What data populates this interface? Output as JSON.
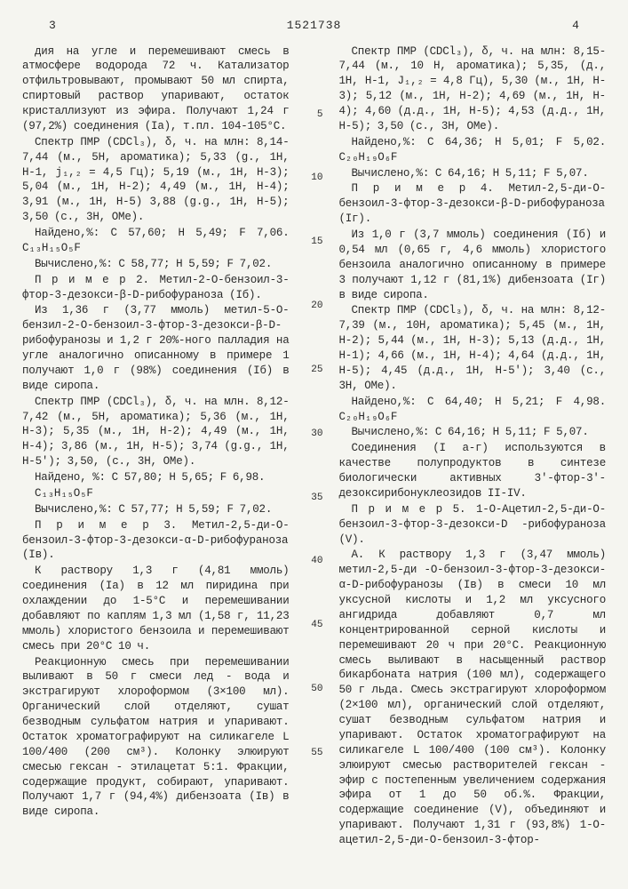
{
  "header": {
    "page_left": "3",
    "doc_number": "1521738",
    "page_right": "4"
  },
  "line_numbers": [
    "5",
    "10",
    "15",
    "20",
    "25",
    "30",
    "35",
    "40",
    "45",
    "50",
    "55"
  ],
  "left_column": [
    "дия на угле и перемешивают смесь в атмосфере водорода 72 ч. Катализатор отфильтровывают, промывают 50 мл спирта, спиртовый раствор упаривают, остаток кристаллизуют из эфира. Получают 1,24 г (97,2%) соединения (Iа), т.пл. 104-105°C.",
    "Спектр ПМР (CDCl₃), δ, ч. на млн: 8,14-7,44 (м., 5H, ароматика); 5,33 (g., 1H, H-1, j₁,₂ = 4,5 Гц); 5,19 (м., 1H, H-3); 5,04 (м., 1H, H-2); 4,49 (м., 1H, H-4); 3,91 (м., 1H, H-5) 3,88 (g.g., 1H, H-5); 3,50 (с., 3H, OMe).",
    "Найдено,%: C 57,60; H 5,49; F 7,06. C₁₃H₁₅O₅F",
    "Вычислено,%: C 58,77; H 5,59; F 7,02.",
    "П р и м е р  2. Метил-2-O-бензоил-3-фтор-3-дезокси-β-D-рибофураноза (Iб).",
    "Из 1,36 г (3,77 ммоль) метил-5-O-бензил-2-O-бензоил-3-фтор-3-дезокси-β-D-рибофуранозы и 1,2 г 20%-ного палладия на угле аналогично описанному в примере 1 получают 1,0 г (98%) соединения (Iб) в виде сиропа.",
    "Спектр ПМР (CDCl₃), δ, ч. на млн. 8,12-7,42 (м., 5H, ароматика); 5,36 (м., 1H, H-3); 5,35 (м., 1H, H-2); 4,49 (м., 1H, H-4); 3,86 (м., 1H, H-5); 3,74 (g.g., 1H, H-5'); 3,50, (с., 3H, OMe).",
    "Найдено, %: C 57,80; H 5,65; F 6,98.",
    "C₁₃H₁₅O₅F",
    "Вычислено,%: C 57,77; H 5,59; F 7,02.",
    "П р и м е р  3. Метил-2,5-ди-O-бензоил-3-фтор-3-дезокси-α-D-рибофураноза (Iв).",
    "К раствору 1,3 г (4,81 ммоль) соединения (Iа) в 12 мл пиридина при охлаждении до 1-5°C и перемешивании добавляют по каплям 1,3 мл (1,58 г, 11,23 ммоль) хлористого бензоила и перемешивают смесь при 20°C 10 ч.",
    "Реакционную смесь при перемешивании выливают в 50 г смеси лед - вода и экстрагируют хлороформом (3×100 мл). Органический слой отделяют, сушат безводным сульфатом натрия и упаривают. Остаток хроматографируют на силикагеле L 100/400 (200 см³). Колонку элюируют смесью гексан - этилацетат 5:1. Фракции, содержащие продукт, собирают, упаривают. Получают 1,7 г (94,4%) дибензоата (Iв) в виде сиропа."
  ],
  "right_column": [
    "Спектр ПМР (CDCl₃), δ, ч. на млн: 8,15-7,44 (м., 10 H, ароматика); 5,35, (д., 1H, H-1, J₁,₂ = 4,8 Гц), 5,30 (м., 1H, H-3); 5,12 (м., 1H, H-2); 4,69 (м., 1H, H-4); 4,60 (д.д., 1H, H-5); 4,53 (д.д., 1H, H-5); 3,50 (с., 3H, OMe).",
    "Найдено,%: C 64,36; H 5,01; F 5,02. C₂₀H₁₉O₆F",
    "Вычислено,%: C 64,16; H 5,11; F 5,07.",
    "П р и м е р  4. Метил-2,5-ди-O-бензоил-3-фтор-3-дезокси-β-D-рибофураноза (Iг).",
    "Из 1,0 г (3,7 ммоль) соединения (Iб) и 0,54 мл (0,65 г, 4,6 ммоль) хлористого бензоила аналогично описанному в примере 3 получают 1,12 г (81,1%) дибензоата (Iг) в виде сиропа.",
    "Спектр ПМР (CDCl₃), δ, ч. на млн: 8,12-7,39 (м., 10H, ароматика); 5,45 (м., 1H, H-2); 5,44 (м., 1H, H-3); 5,13 (д.д., 1H, H-1); 4,66 (м., 1H, H-4); 4,64 (д.д., 1H, H-5); 4,45 (д.д., 1H, H-5'); 3,40 (с., 3H, OMe).",
    "Найдено,%: C 64,40; H 5,21; F 4,98. C₂₀H₁₉O₆F",
    "Вычислено,%: C 64,16; H 5,11; F 5,07.",
    "Соединения (I а-г) используются в качестве полупродуктов в синтезе биологически активных 3'-фтор-3'-дезоксирибонуклеозидов II-IV.",
    "П р и м е р  5. 1-O-Ацетил-2,5-ди-O-бензоил-3-фтор-3-дезокси-D -рибофураноза (V).",
    "А. К раствору 1,3 г (3,47 ммоль) метил-2,5-ди -O-бензоил-3-фтор-3-дезокси-α-D-рибофуранозы (Iв) в смеси 10 мл уксусной кислоты и 1,2 мл уксусного ангидрида добавляют 0,7 мл концентрированной серной кислоты и перемешивают 20 ч при 20°C. Реакционную смесь выливают в насыщенный раствор бикарбоната натрия (100 мл), содержащего 50 г льда. Смесь экстрагируют хлороформом (2×100 мл), органический слой отделяют, сушат безводным сульфатом натрия и упаривают. Остаток хроматографируют на силикагеле L 100/400 (100 см³). Колонку элюируют смесью растворителей гексан - эфир с постепенным увеличением содержания эфира от 1 до 50 об.%. Фракции, содержащие соединение (V), объединяют и упаривают. Получают 1,31 г (93,8%) 1-O-ацетил-2,5-ди-O-бензоил-3-фтор-"
  ]
}
